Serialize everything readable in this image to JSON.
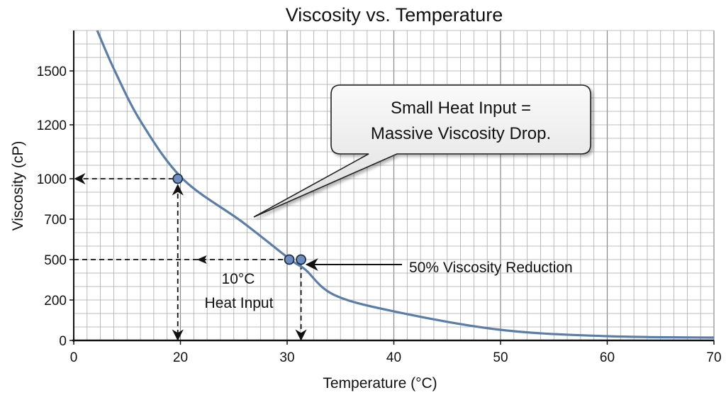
{
  "chart_data": {
    "type": "line",
    "title": "Viscosity vs. Temperature",
    "xlabel": "Temperature (°C)",
    "ylabel": "Viscosity (cP)",
    "x_ticks": [
      0,
      20,
      30,
      40,
      50,
      60,
      70
    ],
    "y_ticks": [
      0,
      200,
      500,
      700,
      1000,
      1200,
      1500
    ],
    "xlim": [
      0,
      70
    ],
    "ylim": [
      0,
      1725
    ],
    "grid": true,
    "colors": {
      "curve": "#5a7ea8",
      "marker": "#6d8fc0",
      "marker_edge": "#1f2f45",
      "annotation": "#111111"
    },
    "series": [
      {
        "x": [
          4.4,
          7.7,
          12.7,
          20.2,
          25.8,
          30.3,
          31.7,
          34.3,
          39.7,
          49.9,
          60,
          70
        ],
        "y": [
          1725,
          1500,
          1212,
          1000,
          686,
          500,
          426,
          242,
          147,
          53,
          21,
          14
        ]
      }
    ],
    "markers": [
      {
        "x": 19.5,
        "y": 1000
      },
      {
        "x": 30.2,
        "y": 500
      },
      {
        "x": 31.3,
        "y": 500
      }
    ],
    "annotations": {
      "callout": [
        "Small Heat Input =",
        "Massive Viscosity Drop."
      ],
      "heat_input": [
        "10°C",
        "Heat Input"
      ],
      "reduction": "50% Viscosity Reduction"
    }
  }
}
